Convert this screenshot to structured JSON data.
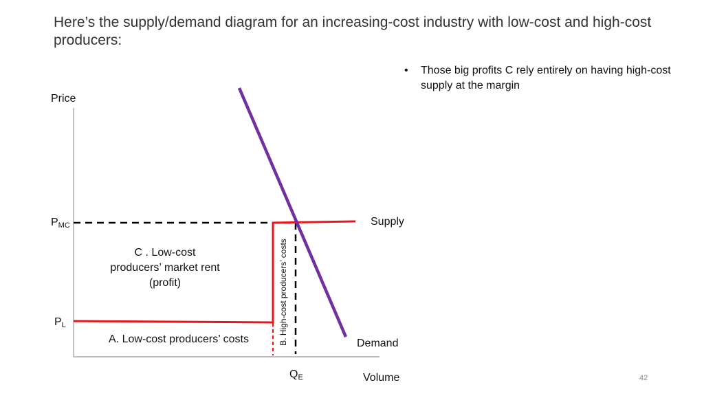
{
  "slide": {
    "title": "Here’s the supply/demand diagram for an increasing-cost industry with low-cost and high-cost producers:",
    "bullet": "Those big profits C rely entirely on having high-cost supply at the margin",
    "page_number": "42"
  },
  "diagram": {
    "axis_y_label": "Price",
    "axis_x_label": "Volume",
    "pmc_main": "P",
    "pmc_sub": "MC",
    "pl_main": "P",
    "pl_sub": "L",
    "qe_main": "Q",
    "qe_sub": "E",
    "supply_label": "Supply",
    "demand_label": "Demand",
    "area_c_label": "C .   Low-cost producers’ market rent (profit)",
    "area_a_label": "A.  Low-cost producers’ costs",
    "area_b_label": "B. High-cost producers’ costs",
    "colors": {
      "supply": "#e8161b",
      "demand": "#7030a0",
      "guide": "#000000",
      "axis": "#999999"
    }
  }
}
